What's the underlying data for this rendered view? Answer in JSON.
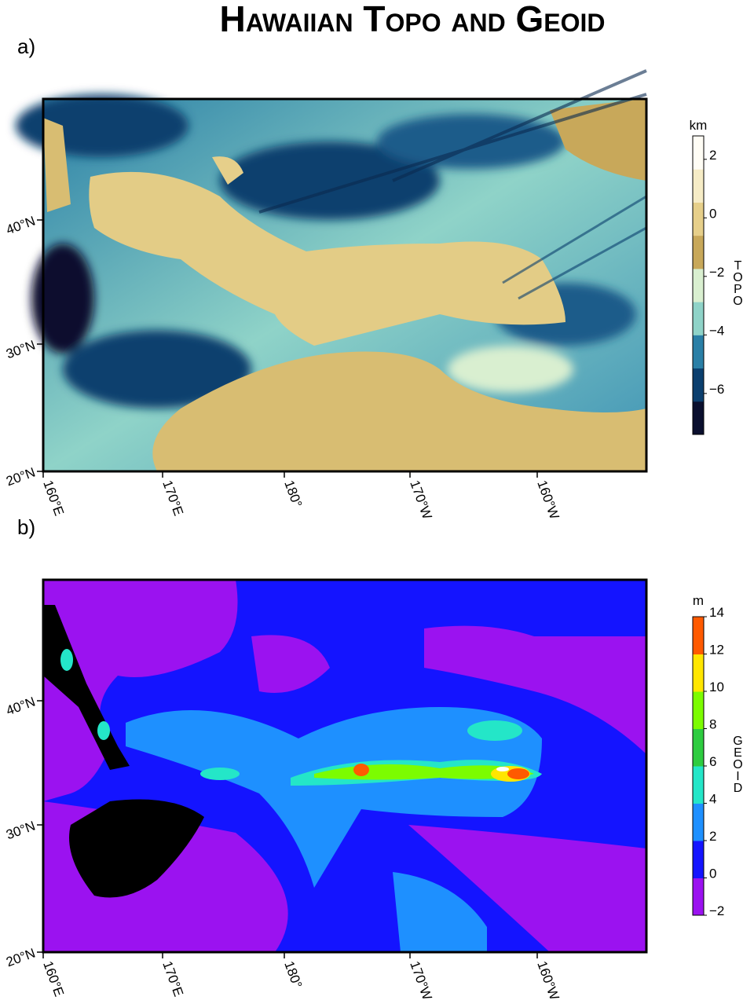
{
  "title": "Hawaiian Topo and Geoid",
  "panels": [
    {
      "label": "a)",
      "lat_ticks": [
        "20°N",
        "30°N",
        "40°N"
      ],
      "lon_ticks": [
        "160°E",
        "170°E",
        "180°",
        "170°W",
        "160°W"
      ],
      "colorbar": {
        "unit": "km",
        "label": "TOPO",
        "lim": [
          -7.4,
          2.8
        ],
        "ticks": [
          {
            "value": -6,
            "label": "−6"
          },
          {
            "value": -4,
            "label": "−4"
          },
          {
            "value": -2,
            "label": "−2"
          },
          0,
          2
        ],
        "colors": [
          "#0a0f2e",
          "#0b3f6e",
          "#2a7fa6",
          "#8fd3c8",
          "#d9efd0",
          "#c8a85a",
          "#e6cf8a",
          "#f6ecc6",
          "#fffdf5"
        ]
      }
    },
    {
      "label": "b)",
      "lat_ticks": [
        "20°N",
        "30°N",
        "40°N"
      ],
      "lon_ticks": [
        "160°E",
        "170°E",
        "180°",
        "170°W",
        "160°W"
      ],
      "colorbar": {
        "unit": "m",
        "label": "GEOID",
        "lim": [
          -2,
          14
        ],
        "ticks": [
          {
            "value": -2,
            "label": "−2"
          },
          0,
          2,
          4,
          6,
          8,
          10,
          12,
          14
        ],
        "colors": [
          "#9b12f0",
          "#1414ff",
          "#1e90ff",
          "#24e6c8",
          "#2ecc40",
          "#7cfc00",
          "#ffe600",
          "#ff5a00"
        ]
      }
    }
  ]
}
